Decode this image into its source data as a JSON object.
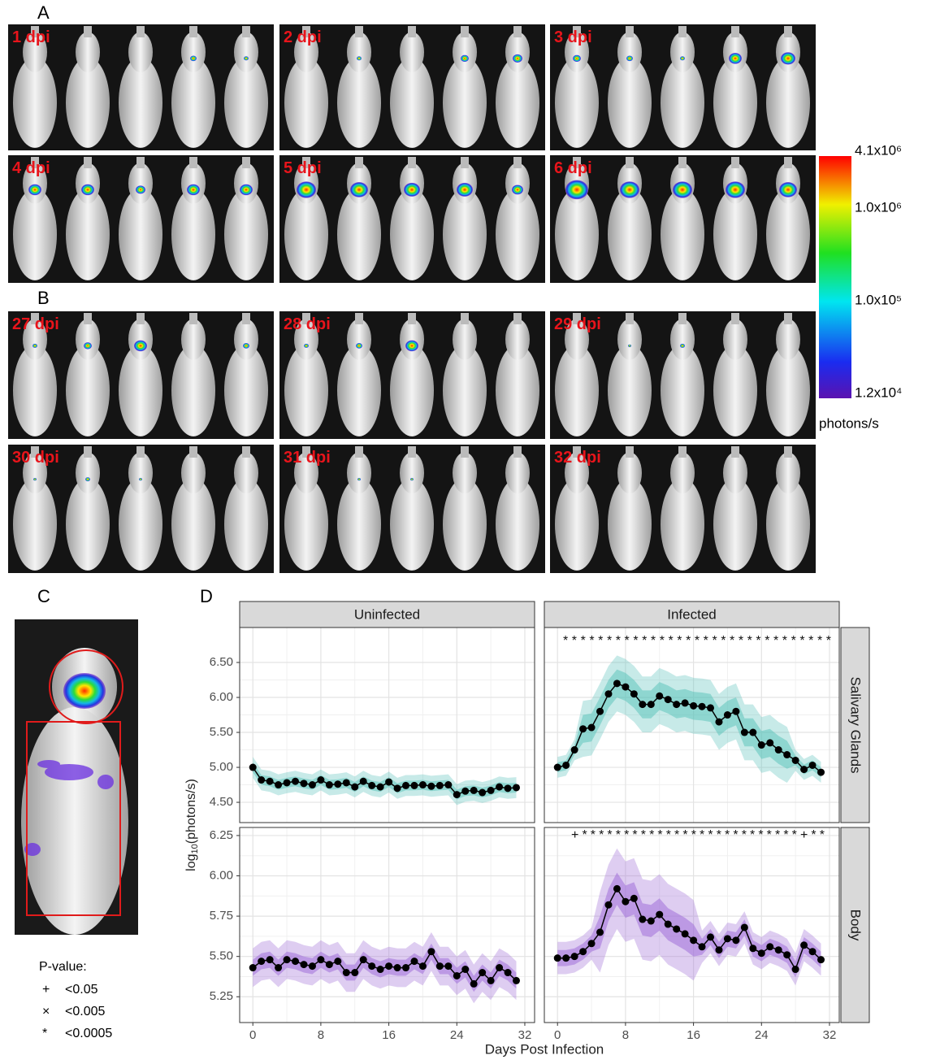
{
  "panel_labels": [
    "A",
    "B",
    "C",
    "D"
  ],
  "imaging": {
    "A": [
      "1 dpi",
      "2 dpi",
      "3 dpi",
      "4 dpi",
      "5 dpi",
      "6 dpi"
    ],
    "B": [
      "27 dpi",
      "28 dpi",
      "29 dpi",
      "30 dpi",
      "31 dpi",
      "32 dpi"
    ]
  },
  "colorbar": {
    "labels": [
      "4.1x10⁶",
      "1.0x10⁶",
      "1.0x10⁵",
      "1.2x10⁴"
    ],
    "unit": "photons/s"
  },
  "p_value_legend": {
    "title": "P-value:",
    "items": [
      {
        "symbol": "+",
        "label": "<0.05"
      },
      {
        "symbol": "×",
        "label": "<0.005"
      },
      {
        "symbol": "*",
        "label": "<0.0005"
      }
    ]
  },
  "facets": {
    "columns": [
      "Uninfected",
      "Infected"
    ],
    "rows": [
      "Salivary Glands",
      "Body"
    ]
  },
  "axis_labels": {
    "x": "Days Post Infection",
    "y": [
      "log",
      "10",
      "(photons/s)"
    ]
  },
  "chart_data": [
    {
      "type": "line",
      "color": "#5fc4bc",
      "significance": null,
      "x": [
        0,
        1,
        2,
        3,
        4,
        5,
        6,
        7,
        8,
        9,
        10,
        11,
        12,
        13,
        14,
        15,
        16,
        17,
        18,
        19,
        20,
        21,
        22,
        23,
        24,
        25,
        26,
        27,
        28,
        29,
        30,
        31
      ],
      "values": [
        5.0,
        4.82,
        4.8,
        4.75,
        4.78,
        4.8,
        4.77,
        4.75,
        4.82,
        4.75,
        4.76,
        4.78,
        4.72,
        4.8,
        4.74,
        4.72,
        4.79,
        4.7,
        4.74,
        4.74,
        4.75,
        4.73,
        4.74,
        4.75,
        4.61,
        4.66,
        4.67,
        4.64,
        4.67,
        4.72,
        4.7,
        4.71
      ],
      "band_outer": {
        "low": [
          4.85,
          4.67,
          4.65,
          4.6,
          4.63,
          4.65,
          4.62,
          4.6,
          4.67,
          4.6,
          4.61,
          4.63,
          4.57,
          4.65,
          4.59,
          4.57,
          4.64,
          4.55,
          4.59,
          4.59,
          4.6,
          4.58,
          4.59,
          4.6,
          4.46,
          4.51,
          4.52,
          4.49,
          4.52,
          4.57,
          4.55,
          4.56
        ],
        "high": [
          5.15,
          4.97,
          4.95,
          4.9,
          4.93,
          4.95,
          4.92,
          4.9,
          4.97,
          4.9,
          4.91,
          4.93,
          4.87,
          4.95,
          4.89,
          4.87,
          4.94,
          4.85,
          4.89,
          4.89,
          4.9,
          4.88,
          4.89,
          4.9,
          4.76,
          4.81,
          4.82,
          4.79,
          4.82,
          4.87,
          4.85,
          4.86
        ]
      },
      "band_inner": {
        "low": [
          4.93,
          4.75,
          4.73,
          4.68,
          4.71,
          4.73,
          4.7,
          4.68,
          4.75,
          4.68,
          4.69,
          4.71,
          4.65,
          4.73,
          4.67,
          4.65,
          4.72,
          4.63,
          4.67,
          4.67,
          4.68,
          4.66,
          4.67,
          4.68,
          4.54,
          4.59,
          4.6,
          4.57,
          4.6,
          4.65,
          4.63,
          4.64
        ],
        "high": [
          5.07,
          4.89,
          4.87,
          4.82,
          4.85,
          4.87,
          4.84,
          4.82,
          4.89,
          4.82,
          4.83,
          4.85,
          4.79,
          4.87,
          4.81,
          4.79,
          4.86,
          4.77,
          4.81,
          4.81,
          4.82,
          4.8,
          4.81,
          4.82,
          4.68,
          4.73,
          4.74,
          4.71,
          4.74,
          4.79,
          4.77,
          4.78
        ]
      },
      "xlim": [
        -1.55,
        33.15
      ],
      "xticks": [
        0,
        8,
        16,
        24,
        32
      ],
      "ylim": [
        4.21,
        7.0
      ],
      "yticks": [
        {
          "value": 4.5,
          "label": "4.50"
        },
        {
          "value": 5,
          "label": "5.00"
        },
        {
          "value": 5.5,
          "label": "5.50"
        },
        {
          "value": 6,
          "label": "6.00"
        },
        {
          "value": 6.5,
          "label": "6.50"
        }
      ],
      "grid": true
    },
    {
      "type": "line",
      "color": "#5fc4bc",
      "significance": "*******************************",
      "x": [
        0,
        1,
        2,
        3,
        4,
        5,
        6,
        7,
        8,
        9,
        10,
        11,
        12,
        13,
        14,
        15,
        16,
        17,
        18,
        19,
        20,
        21,
        22,
        23,
        24,
        25,
        26,
        27,
        28,
        29,
        30,
        31
      ],
      "values": [
        5.0,
        5.03,
        5.25,
        5.55,
        5.57,
        5.8,
        6.05,
        6.2,
        6.15,
        6.05,
        5.9,
        5.9,
        6.02,
        5.97,
        5.9,
        5.92,
        5.88,
        5.87,
        5.85,
        5.65,
        5.75,
        5.8,
        5.5,
        5.5,
        5.32,
        5.35,
        5.25,
        5.18,
        5.1,
        4.97,
        5.03,
        4.93
      ],
      "band_outer": {
        "low": [
          4.85,
          4.88,
          5.1,
          5.15,
          5.17,
          5.4,
          5.65,
          5.8,
          5.75,
          5.65,
          5.5,
          5.5,
          5.62,
          5.57,
          5.5,
          5.52,
          5.48,
          5.47,
          5.45,
          5.25,
          5.35,
          5.4,
          5.1,
          5.1,
          4.92,
          4.95,
          4.85,
          4.78,
          4.95,
          4.82,
          4.88,
          4.78
        ],
        "high": [
          5.15,
          5.18,
          5.4,
          5.95,
          5.97,
          6.2,
          6.45,
          6.6,
          6.55,
          6.45,
          6.3,
          6.3,
          6.42,
          6.37,
          6.3,
          6.32,
          6.28,
          6.27,
          6.25,
          6.05,
          6.15,
          6.2,
          5.9,
          5.9,
          5.72,
          5.75,
          5.65,
          5.58,
          5.25,
          5.12,
          5.18,
          5.08
        ]
      },
      "band_inner": {
        "low": [
          4.93,
          4.96,
          5.18,
          5.35,
          5.37,
          5.6,
          5.85,
          6.0,
          5.95,
          5.85,
          5.7,
          5.7,
          5.82,
          5.77,
          5.7,
          5.72,
          5.68,
          5.67,
          5.65,
          5.45,
          5.55,
          5.6,
          5.3,
          5.3,
          5.12,
          5.15,
          5.05,
          4.98,
          5.03,
          4.9,
          4.96,
          4.86
        ],
        "high": [
          5.07,
          5.1,
          5.32,
          5.75,
          5.77,
          6.0,
          6.25,
          6.4,
          6.35,
          6.25,
          6.1,
          6.1,
          6.22,
          6.17,
          6.1,
          6.12,
          6.08,
          6.07,
          6.05,
          5.85,
          5.95,
          6.0,
          5.7,
          5.7,
          5.52,
          5.55,
          5.45,
          5.38,
          5.17,
          5.04,
          5.1,
          5.0
        ]
      },
      "xlim": [
        -1.55,
        33.15
      ],
      "xticks": [
        0,
        8,
        16,
        24,
        32
      ],
      "ylim": [
        4.21,
        7.0
      ],
      "yticks": [
        {
          "value": 4.5,
          "label": "4.50"
        },
        {
          "value": 5,
          "label": "5.00"
        },
        {
          "value": 5.5,
          "label": "5.50"
        },
        {
          "value": 6,
          "label": "6.00"
        },
        {
          "value": 6.5,
          "label": "6.50"
        }
      ],
      "grid": true
    },
    {
      "type": "line",
      "color": "#a070d8",
      "significance": null,
      "x": [
        0,
        1,
        2,
        3,
        4,
        5,
        6,
        7,
        8,
        9,
        10,
        11,
        12,
        13,
        14,
        15,
        16,
        17,
        18,
        19,
        20,
        21,
        22,
        23,
        24,
        25,
        26,
        27,
        28,
        29,
        30,
        31
      ],
      "values": [
        5.43,
        5.47,
        5.48,
        5.43,
        5.48,
        5.47,
        5.45,
        5.44,
        5.48,
        5.45,
        5.47,
        5.4,
        5.4,
        5.48,
        5.44,
        5.42,
        5.44,
        5.43,
        5.43,
        5.47,
        5.44,
        5.53,
        5.44,
        5.44,
        5.38,
        5.42,
        5.33,
        5.4,
        5.35,
        5.43,
        5.4,
        5.35
      ],
      "band_outer": {
        "low": [
          5.31,
          5.35,
          5.36,
          5.31,
          5.36,
          5.35,
          5.33,
          5.32,
          5.36,
          5.33,
          5.35,
          5.28,
          5.28,
          5.36,
          5.32,
          5.3,
          5.32,
          5.31,
          5.31,
          5.35,
          5.32,
          5.41,
          5.32,
          5.32,
          5.26,
          5.3,
          5.21,
          5.28,
          5.23,
          5.31,
          5.28,
          5.23
        ],
        "high": [
          5.55,
          5.59,
          5.6,
          5.55,
          5.6,
          5.59,
          5.57,
          5.56,
          5.6,
          5.57,
          5.59,
          5.52,
          5.52,
          5.6,
          5.56,
          5.54,
          5.56,
          5.55,
          5.55,
          5.59,
          5.56,
          5.65,
          5.56,
          5.56,
          5.5,
          5.54,
          5.45,
          5.52,
          5.47,
          5.55,
          5.52,
          5.47
        ]
      },
      "band_inner": {
        "low": [
          5.38,
          5.42,
          5.43,
          5.38,
          5.43,
          5.42,
          5.4,
          5.39,
          5.43,
          5.4,
          5.42,
          5.35,
          5.35,
          5.43,
          5.39,
          5.37,
          5.39,
          5.38,
          5.38,
          5.42,
          5.39,
          5.48,
          5.39,
          5.39,
          5.33,
          5.37,
          5.28,
          5.35,
          5.3,
          5.38,
          5.35,
          5.3
        ],
        "high": [
          5.48,
          5.52,
          5.53,
          5.48,
          5.53,
          5.52,
          5.5,
          5.49,
          5.53,
          5.5,
          5.52,
          5.45,
          5.45,
          5.53,
          5.49,
          5.47,
          5.49,
          5.48,
          5.48,
          5.52,
          5.49,
          5.58,
          5.49,
          5.49,
          5.43,
          5.47,
          5.38,
          5.45,
          5.4,
          5.48,
          5.45,
          5.4
        ]
      },
      "xlim": [
        -1.55,
        33.15
      ],
      "xticks": [
        0,
        8,
        16,
        24,
        32
      ],
      "ylim": [
        5.09,
        6.3
      ],
      "yticks": [
        5.25,
        {
          "value": 5.5,
          "label": "5.50"
        },
        5.75,
        {
          "value": 6,
          "label": "6.00"
        },
        6.25
      ],
      "grid": true
    },
    {
      "type": "line",
      "color": "#a070d8",
      "significance": "+**************************+**",
      "x": [
        0,
        1,
        2,
        3,
        4,
        5,
        6,
        7,
        8,
        9,
        10,
        11,
        12,
        13,
        14,
        15,
        16,
        17,
        18,
        19,
        20,
        21,
        22,
        23,
        24,
        25,
        26,
        27,
        28,
        29,
        30,
        31
      ],
      "values": [
        5.49,
        5.49,
        5.5,
        5.53,
        5.58,
        5.65,
        5.82,
        5.92,
        5.84,
        5.86,
        5.73,
        5.72,
        5.76,
        5.7,
        5.67,
        5.64,
        5.6,
        5.56,
        5.62,
        5.54,
        5.61,
        5.6,
        5.68,
        5.55,
        5.52,
        5.56,
        5.54,
        5.51,
        5.42,
        5.57,
        5.53,
        5.48
      ],
      "band_outer": {
        "low": [
          5.39,
          5.39,
          5.4,
          5.43,
          5.48,
          5.4,
          5.57,
          5.67,
          5.59,
          5.61,
          5.48,
          5.47,
          5.51,
          5.45,
          5.42,
          5.39,
          5.35,
          5.46,
          5.52,
          5.44,
          5.51,
          5.5,
          5.58,
          5.45,
          5.42,
          5.46,
          5.44,
          5.41,
          5.32,
          5.47,
          5.43,
          5.38
        ],
        "high": [
          5.59,
          5.59,
          5.6,
          5.63,
          5.68,
          5.9,
          6.07,
          6.17,
          6.09,
          6.11,
          5.98,
          5.97,
          6.01,
          5.95,
          5.92,
          5.89,
          5.85,
          5.66,
          5.72,
          5.64,
          5.71,
          5.7,
          5.78,
          5.65,
          5.62,
          5.66,
          5.64,
          5.61,
          5.52,
          5.67,
          5.63,
          5.58
        ]
      },
      "band_inner": {
        "low": [
          5.44,
          5.44,
          5.45,
          5.48,
          5.53,
          5.55,
          5.72,
          5.82,
          5.74,
          5.76,
          5.63,
          5.62,
          5.66,
          5.6,
          5.57,
          5.54,
          5.5,
          5.51,
          5.57,
          5.49,
          5.56,
          5.55,
          5.63,
          5.5,
          5.47,
          5.51,
          5.49,
          5.46,
          5.37,
          5.52,
          5.48,
          5.43
        ],
        "high": [
          5.54,
          5.54,
          5.55,
          5.58,
          5.63,
          5.75,
          5.92,
          6.02,
          5.94,
          5.96,
          5.83,
          5.82,
          5.86,
          5.8,
          5.77,
          5.74,
          5.7,
          5.61,
          5.67,
          5.59,
          5.66,
          5.65,
          5.73,
          5.6,
          5.57,
          5.61,
          5.59,
          5.56,
          5.47,
          5.62,
          5.58,
          5.53
        ]
      },
      "xlim": [
        -1.55,
        33.15
      ],
      "xticks": [
        0,
        8,
        16,
        24,
        32
      ],
      "ylim": [
        5.09,
        6.3
      ],
      "yticks": [
        5.25,
        {
          "value": 5.5,
          "label": "5.50"
        },
        5.75,
        {
          "value": 6,
          "label": "6.00"
        },
        6.25
      ],
      "grid": true
    }
  ]
}
